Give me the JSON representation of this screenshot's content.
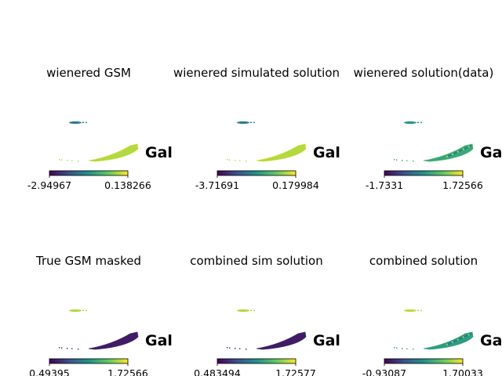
{
  "figure": {
    "colormap": [
      "#440154",
      "#3b528b",
      "#21918c",
      "#5ec962",
      "#fde725"
    ]
  },
  "chart_data": [
    {
      "type": "heatmap",
      "title": "wienered GSM",
      "overlay_text": "Gala",
      "colorbar": {
        "min": -2.94967,
        "max": 0.138266,
        "tick_labels": [
          "-2.94967",
          "0.138266"
        ]
      },
      "map_level": 0.88,
      "cloud_level": 0.42
    },
    {
      "type": "heatmap",
      "title": "wienered simulated solution",
      "overlay_text": "Gala",
      "colorbar": {
        "min": -3.71691,
        "max": 0.179984,
        "tick_labels": [
          "-3.71691",
          "0.179984"
        ]
      },
      "map_level": 0.88,
      "cloud_level": 0.42
    },
    {
      "type": "heatmap",
      "title": "wienered solution(data)",
      "overlay_text": "Gala",
      "colorbar": {
        "min": -1.7331,
        "max": 1.72566,
        "tick_labels": [
          "-1.7331",
          "1.72566"
        ]
      },
      "map_level": 0.6,
      "cloud_level": 0.52
    },
    {
      "type": "heatmap",
      "title": "True GSM masked",
      "overlay_text": "Gala",
      "colorbar": {
        "min": 0.49395,
        "max": 1.72566,
        "tick_labels": [
          "0.49395",
          "1.72566"
        ]
      },
      "map_level": 0.08,
      "cloud_level": 0.88
    },
    {
      "type": "heatmap",
      "title": "combined sim solution",
      "overlay_text": "Gala",
      "colorbar": {
        "min": 0.483494,
        "max": 1.72577,
        "tick_labels": [
          "0.483494",
          "1.72577"
        ]
      },
      "map_level": 0.08,
      "cloud_level": 0.88
    },
    {
      "type": "heatmap",
      "title": "combined solution",
      "overlay_text": "Gala",
      "colorbar": {
        "min": -0.93087,
        "max": 1.70033,
        "tick_labels": [
          "-0.93087",
          "1.70033"
        ]
      },
      "map_level": 0.55,
      "cloud_level": 0.9
    }
  ]
}
